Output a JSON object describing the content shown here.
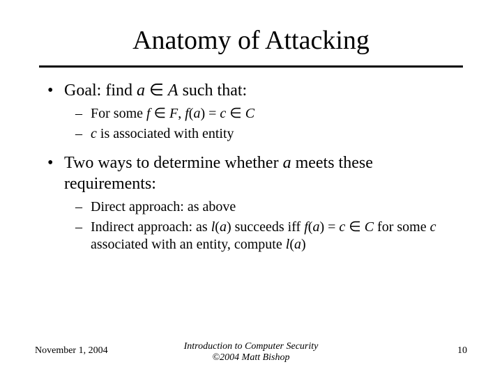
{
  "title": "Anatomy of Attacking",
  "bullets": {
    "b1_pre": "Goal: find ",
    "b1_a": "a",
    "b1_mid1": " ∈ ",
    "b1_A": "A",
    "b1_post": " such that:",
    "b1s1_pre": "For some ",
    "b1s1_f": "f",
    "b1s1_mid1": " ∈ ",
    "b1s1_F": "F",
    "b1s1_mid2": ", ",
    "b1s1_fa_f": "f",
    "b1s1_fa_open": "(",
    "b1s1_fa_a": "a",
    "b1s1_fa_close": ")",
    "b1s1_mid3": " = ",
    "b1s1_c": "c",
    "b1s1_mid4": " ∈ ",
    "b1s1_C": "C",
    "b1s2_c": "c",
    "b1s2_post": " is associated with entity",
    "b2_pre": "Two ways to determine whether ",
    "b2_a": "a",
    "b2_post": " meets these requirements:",
    "b2s1": "Direct approach: as above",
    "b2s2_pre": "Indirect approach: as ",
    "b2s2_l": "l",
    "b2s2_open1": "(",
    "b2s2_a1": "a",
    "b2s2_close1": ")",
    "b2s2_mid1": " succeeds iff ",
    "b2s2_f": "f",
    "b2s2_open2": "(",
    "b2s2_a2": "a",
    "b2s2_close2": ")",
    "b2s2_mid2": " = ",
    "b2s2_c": "c",
    "b2s2_mid3": " ∈ ",
    "b2s2_C": "C",
    "b2s2_mid4": " for some ",
    "b2s2_c2": "c",
    "b2s2_mid5": " associated with an entity, compute ",
    "b2s2_l2": "l",
    "b2s2_open3": "(",
    "b2s2_a3": "a",
    "b2s2_close3": ")"
  },
  "footer": {
    "date": "November 1, 2004",
    "center_line1": "Introduction to Computer Security",
    "center_line2": "©2004 Matt Bishop",
    "page": "10"
  }
}
